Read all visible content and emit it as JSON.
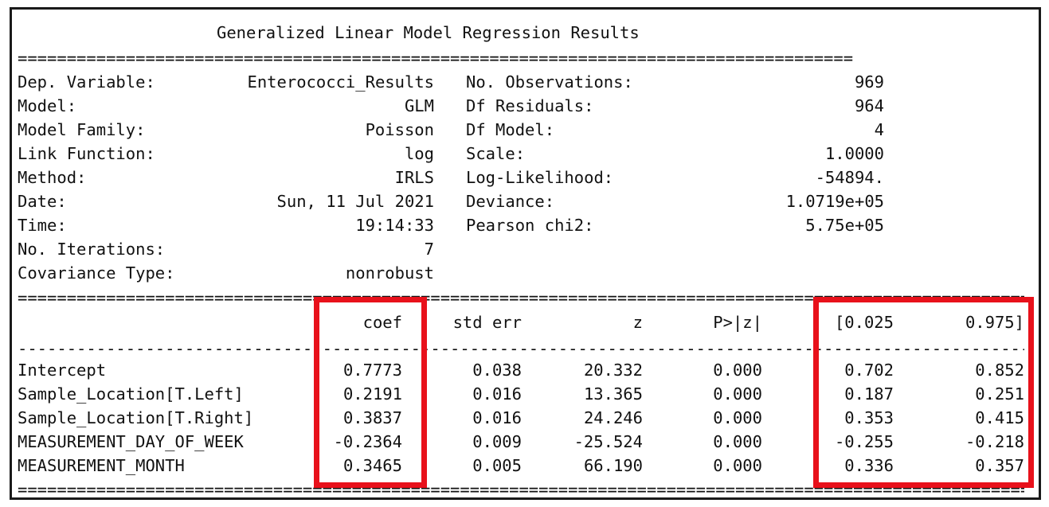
{
  "title": "Generalized Linear Model Regression Results",
  "separator_top": "=====================================================================================",
  "separator_mid": "==========================================================================================================",
  "separator_dash": "----------------------------------------------------------------------------------------------------------",
  "separator_bottom": "==========================================================================================================",
  "left_info": [
    {
      "label": "Dep. Variable:",
      "value": "Enterococci_Results"
    },
    {
      "label": "Model:",
      "value": "GLM"
    },
    {
      "label": "Model Family:",
      "value": "Poisson"
    },
    {
      "label": "Link Function:",
      "value": "log"
    },
    {
      "label": "Method:",
      "value": "IRLS"
    },
    {
      "label": "Date:",
      "value": "Sun, 11 Jul 2021"
    },
    {
      "label": "Time:",
      "value": "19:14:33"
    },
    {
      "label": "No. Iterations:",
      "value": "7"
    },
    {
      "label": "Covariance Type:",
      "value": "nonrobust"
    }
  ],
  "right_info": [
    {
      "label": "No. Observations:",
      "value": "969"
    },
    {
      "label": "Df Residuals:",
      "value": "964"
    },
    {
      "label": "Df Model:",
      "value": "4"
    },
    {
      "label": "Scale:",
      "value": "1.0000"
    },
    {
      "label": "Log-Likelihood:",
      "value": "-54894."
    },
    {
      "label": "Deviance:",
      "value": "1.0719e+05"
    },
    {
      "label": "Pearson chi2:",
      "value": "5.75e+05"
    }
  ],
  "coef_table": {
    "headers": [
      "coef",
      "std err",
      "z",
      "P>|z|",
      "[0.025",
      "0.975]"
    ],
    "rows": [
      {
        "name": "Intercept",
        "values": [
          "0.7773",
          "0.038",
          "20.332",
          "0.000",
          "0.702",
          "0.852"
        ]
      },
      {
        "name": "Sample_Location[T.Left]",
        "values": [
          "0.2191",
          "0.016",
          "13.365",
          "0.000",
          "0.187",
          "0.251"
        ]
      },
      {
        "name": "Sample_Location[T.Right]",
        "values": [
          "0.3837",
          "0.016",
          "24.246",
          "0.000",
          "0.353",
          "0.415"
        ]
      },
      {
        "name": "MEASUREMENT_DAY_OF_WEEK",
        "values": [
          "-0.2364",
          "0.009",
          "-25.524",
          "0.000",
          "-0.255",
          "-0.218"
        ]
      },
      {
        "name": "MEASUREMENT_MONTH",
        "values": [
          "0.3465",
          "0.005",
          "66.190",
          "0.000",
          "0.336",
          "0.357"
        ]
      }
    ]
  },
  "highlight_color": "#e8111b"
}
